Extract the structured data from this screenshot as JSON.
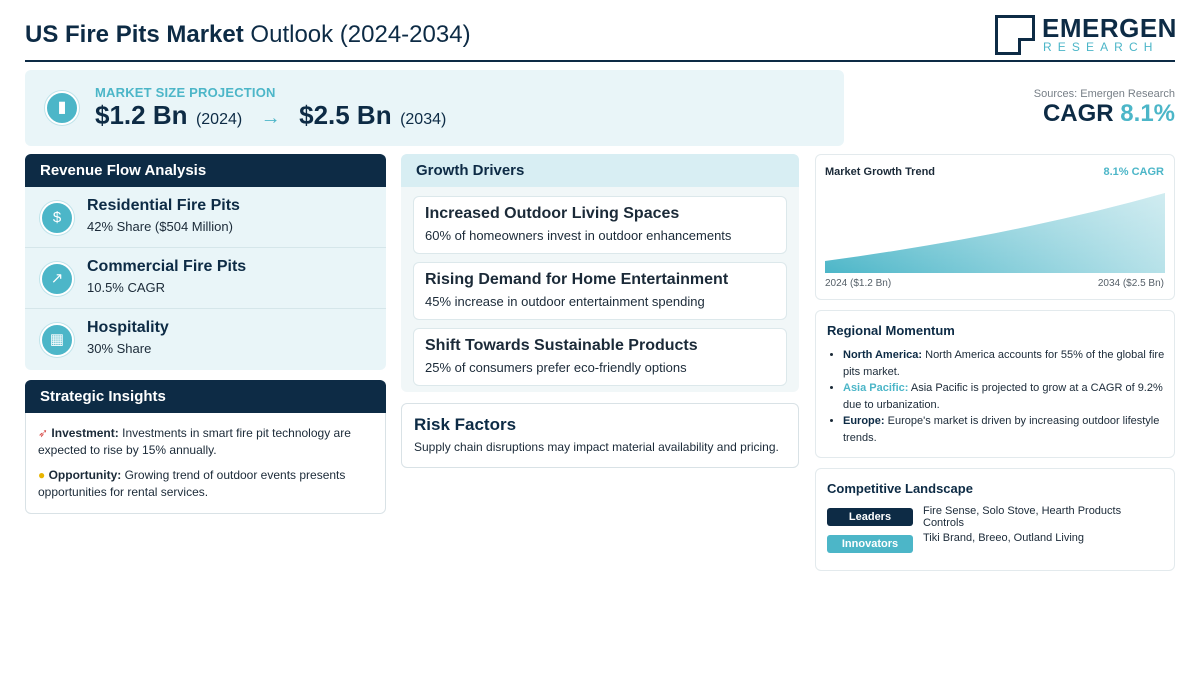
{
  "header": {
    "title_bold": "US Fire Pits Market",
    "title_rest": "Outlook (2024-2034)",
    "logo_main": "EMERGEN",
    "logo_sub": "RESEARCH"
  },
  "projection": {
    "icon": "bar-chart-icon",
    "label": "MARKET SIZE PROJECTION",
    "start_value": "$1.2 Bn",
    "start_year": "(2024)",
    "arrow": "→",
    "end_value": "$2.5 Bn",
    "end_year": "(2034)"
  },
  "summary": {
    "sources": "Sources: Emergen Research",
    "cagr_label": "CAGR",
    "cagr_value": "8.1%"
  },
  "revenue": {
    "title": "Revenue Flow Analysis",
    "items": [
      {
        "icon": "money-bag-icon",
        "name": "Residential Fire Pits",
        "detail": "42% Share ($504 Million)"
      },
      {
        "icon": "trend-chart-icon",
        "name": "Commercial Fire Pits",
        "detail": "10.5% CAGR"
      },
      {
        "icon": "building-icon",
        "name": "Hospitality",
        "detail": "30% Share"
      }
    ]
  },
  "strategic": {
    "title": "Strategic Insights",
    "items": [
      {
        "icon": "rocket-icon",
        "label": "Investment:",
        "text": "Investments in smart fire pit technology are expected to rise by 15% annually."
      },
      {
        "icon": "lightbulb-icon",
        "label": "Opportunity:",
        "text": "Growing trend of outdoor events presents opportunities for rental services."
      }
    ]
  },
  "drivers": {
    "title": "Growth Drivers",
    "items": [
      {
        "title": "Increased Outdoor Living Spaces",
        "detail": "60% of homeowners invest in outdoor enhancements"
      },
      {
        "title": "Rising Demand for Home Entertainment",
        "detail": "45% increase in outdoor entertainment spending"
      },
      {
        "title": "Shift Towards Sustainable Products",
        "detail": "25% of consumers prefer eco-friendly options"
      }
    ]
  },
  "risk": {
    "title": "Risk Factors",
    "text": "Supply chain disruptions may impact material availability and pricing."
  },
  "trend": {
    "title": "Market Growth Trend",
    "cagr": "8.1% CAGR",
    "start_label": "2024 ($1.2 Bn)",
    "end_label": "2034 ($2.5 Bn)",
    "fill_color": "#4cb6c8"
  },
  "chart_data": {
    "type": "area",
    "x": [
      2024,
      2034
    ],
    "values": [
      1.2,
      2.5
    ],
    "title": "Market Growth Trend",
    "xlabel": "",
    "ylabel": ""
  },
  "regional": {
    "title": "Regional Momentum",
    "items": [
      {
        "region": "North America:",
        "text": "North America accounts for 55% of the global fire pits market."
      },
      {
        "region": "Asia Pacific:",
        "text": "Asia Pacific is projected to grow at a CAGR of 9.2% due to urbanization."
      },
      {
        "region": "Europe:",
        "text": "Europe's market is driven by increasing outdoor lifestyle trends."
      }
    ]
  },
  "competitive": {
    "title": "Competitive Landscape",
    "rows": [
      {
        "tag": "Leaders",
        "names": "Fire Sense, Solo Stove, Hearth Products Controls"
      },
      {
        "tag": "Innovators",
        "names": "Tiki Brand, Breeo, Outland Living"
      }
    ]
  },
  "colors": {
    "navy": "#0d2b45",
    "teal": "#4cb6c8",
    "light_panel": "#e9f5f8"
  }
}
